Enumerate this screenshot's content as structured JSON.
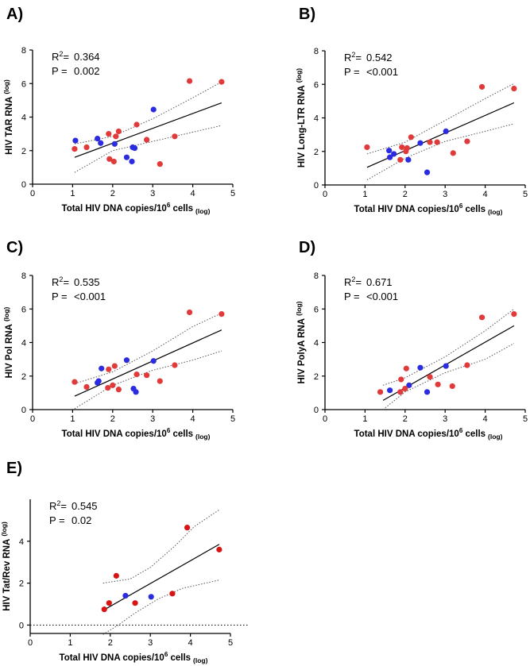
{
  "colors": {
    "blue": "#2b2bdf",
    "red": "#e03a3a",
    "red_dark": "#d81515"
  },
  "chart_data": [
    {
      "type": "scatter",
      "panel": "A)",
      "xlabel": "Total HIV DNA copies/10",
      "xlabel_sup": "6",
      "xlabel_tail": " cells",
      "xlabel_sub": "(log)",
      "ylabel": "HIV TAR RNA",
      "ylabel_sub": "(log)",
      "xlim": [
        0,
        5
      ],
      "ylim": [
        0,
        8
      ],
      "xticks": [
        "0",
        "1",
        "2",
        "3",
        "4",
        "5"
      ],
      "yticks": [
        "0",
        "2",
        "4",
        "6",
        "8"
      ],
      "r2_prefix": "R",
      "r2_sup": "2",
      "r2_eq": "=",
      "r2": "0.364",
      "p_label": "P =",
      "p": "0.002",
      "fit": {
        "x": [
          1.05,
          4.72
        ],
        "y": [
          1.6,
          4.85
        ]
      },
      "ci_upper": [
        [
          1.05,
          2.4
        ],
        [
          2.0,
          2.85
        ],
        [
          3.0,
          3.9
        ],
        [
          4.0,
          5.15
        ],
        [
          4.72,
          6.1
        ]
      ],
      "ci_lower": [
        [
          1.05,
          0.7
        ],
        [
          2.0,
          2.0
        ],
        [
          3.0,
          2.55
        ],
        [
          4.0,
          3.1
        ],
        [
          4.72,
          3.5
        ]
      ],
      "series": [
        {
          "name": "blue",
          "color": "blue",
          "points": [
            [
              1.07,
              2.6
            ],
            [
              1.62,
              2.72
            ],
            [
              1.7,
              2.45
            ],
            [
              2.05,
              2.4
            ],
            [
              2.35,
              1.6
            ],
            [
              2.48,
              1.35
            ],
            [
              2.5,
              2.2
            ],
            [
              2.55,
              2.15
            ],
            [
              3.02,
              4.45
            ]
          ]
        },
        {
          "name": "red",
          "color": "red",
          "points": [
            [
              1.05,
              2.1
            ],
            [
              1.35,
              2.2
            ],
            [
              1.9,
              3.0
            ],
            [
              1.92,
              1.5
            ],
            [
              2.03,
              1.35
            ],
            [
              2.08,
              2.85
            ],
            [
              2.15,
              3.15
            ],
            [
              2.6,
              3.55
            ],
            [
              2.85,
              2.65
            ],
            [
              3.18,
              1.2
            ],
            [
              3.55,
              2.85
            ],
            [
              3.92,
              6.15
            ],
            [
              4.72,
              6.1
            ]
          ]
        }
      ]
    },
    {
      "type": "scatter",
      "panel": "B)",
      "xlabel": "Total HIV DNA copies/10",
      "xlabel_sup": "6",
      "xlabel_tail": " cells",
      "xlabel_sub": "(log)",
      "ylabel": "HIV Long-LTR RNA",
      "ylabel_sub": "(log)",
      "xlim": [
        0,
        5
      ],
      "ylim": [
        0,
        8
      ],
      "xticks": [
        "0",
        "1",
        "2",
        "3",
        "4",
        "5"
      ],
      "yticks": [
        "0",
        "2",
        "4",
        "6",
        "8"
      ],
      "r2_prefix": "R",
      "r2_sup": "2",
      "r2_eq": "=",
      "r2": "0.542",
      "p_label": "P =",
      "p": "<0.001",
      "fit": {
        "x": [
          1.05,
          4.72
        ],
        "y": [
          1.05,
          4.9
        ]
      },
      "ci_upper": [
        [
          1.05,
          1.85
        ],
        [
          2.0,
          2.55
        ],
        [
          3.0,
          3.85
        ],
        [
          4.0,
          5.15
        ],
        [
          4.72,
          6.05
        ]
      ],
      "ci_lower": [
        [
          1.05,
          0.3
        ],
        [
          2.0,
          1.6
        ],
        [
          3.0,
          2.6
        ],
        [
          4.0,
          3.2
        ],
        [
          4.72,
          3.65
        ]
      ],
      "series": [
        {
          "name": "blue",
          "color": "blue",
          "points": [
            [
              1.6,
              2.05
            ],
            [
              1.62,
              1.65
            ],
            [
              1.72,
              1.85
            ],
            [
              2.08,
              1.5
            ],
            [
              2.38,
              2.5
            ],
            [
              2.55,
              0.75
            ],
            [
              3.02,
              3.2
            ]
          ]
        },
        {
          "name": "red",
          "color": "red",
          "points": [
            [
              1.05,
              2.25
            ],
            [
              1.88,
              1.5
            ],
            [
              1.92,
              2.25
            ],
            [
              2.02,
              2.0
            ],
            [
              2.05,
              2.2
            ],
            [
              2.15,
              2.85
            ],
            [
              2.62,
              2.55
            ],
            [
              2.8,
              2.55
            ],
            [
              3.2,
              1.9
            ],
            [
              3.55,
              2.6
            ],
            [
              3.92,
              5.85
            ],
            [
              4.72,
              5.75
            ]
          ]
        }
      ]
    },
    {
      "type": "scatter",
      "panel": "C)",
      "xlabel": "Total HIV DNA copies/10",
      "xlabel_sup": "6",
      "xlabel_tail": " cells",
      "xlabel_sub": "(log)",
      "ylabel": "HIV Pol RNA",
      "ylabel_sub": "(log)",
      "xlim": [
        0,
        5
      ],
      "ylim": [
        0,
        8
      ],
      "xticks": [
        "0",
        "1",
        "2",
        "3",
        "4",
        "5"
      ],
      "yticks": [
        "0",
        "2",
        "4",
        "6",
        "8"
      ],
      "r2_prefix": "R",
      "r2_sup": "2",
      "r2_eq": "=",
      "r2": "0.535",
      "p_label": "P =",
      "p": "<0.001",
      "fit": {
        "x": [
          1.05,
          4.72
        ],
        "y": [
          0.8,
          4.75
        ]
      },
      "ci_upper": [
        [
          1.05,
          1.55
        ],
        [
          2.0,
          2.25
        ],
        [
          3.0,
          3.5
        ],
        [
          4.0,
          4.95
        ],
        [
          4.72,
          5.75
        ]
      ],
      "ci_lower": [
        [
          1.05,
          0.05
        ],
        [
          2.0,
          1.45
        ],
        [
          3.0,
          2.35
        ],
        [
          4.0,
          2.95
        ],
        [
          4.72,
          3.5
        ]
      ],
      "series": [
        {
          "name": "blue",
          "color": "blue",
          "points": [
            [
              1.65,
              1.7
            ],
            [
              1.62,
              1.6
            ],
            [
              1.72,
              2.45
            ],
            [
              2.35,
              2.95
            ],
            [
              2.52,
              1.25
            ],
            [
              2.58,
              1.05
            ],
            [
              3.02,
              2.9
            ]
          ]
        },
        {
          "name": "red",
          "color": "red",
          "points": [
            [
              1.05,
              1.65
            ],
            [
              1.35,
              1.35
            ],
            [
              1.88,
              1.3
            ],
            [
              1.9,
              2.4
            ],
            [
              2.0,
              1.45
            ],
            [
              2.05,
              2.6
            ],
            [
              2.15,
              1.2
            ],
            [
              2.6,
              2.1
            ],
            [
              2.85,
              2.05
            ],
            [
              3.18,
              1.7
            ],
            [
              3.55,
              2.65
            ],
            [
              3.92,
              5.8
            ],
            [
              4.72,
              5.7
            ]
          ]
        }
      ]
    },
    {
      "type": "scatter",
      "panel": "D)",
      "xlabel": "Total HIV DNA copies/10",
      "xlabel_sup": "6",
      "xlabel_tail": " cells",
      "xlabel_sub": "(log)",
      "ylabel": "HIV PolyA RNA",
      "ylabel_sub": "(log)",
      "xlim": [
        0,
        5
      ],
      "ylim": [
        0,
        8
      ],
      "xticks": [
        "0",
        "1",
        "2",
        "3",
        "4",
        "5"
      ],
      "yticks": [
        "0",
        "2",
        "4",
        "6",
        "8"
      ],
      "r2_prefix": "R",
      "r2_sup": "2",
      "r2_eq": "=",
      "r2": "0.671",
      "p_label": "P =",
      "p": "<0.001",
      "fit": {
        "x": [
          1.45,
          4.72
        ],
        "y": [
          0.55,
          5.0
        ]
      },
      "ci_upper": [
        [
          1.45,
          1.45
        ],
        [
          2.0,
          1.9
        ],
        [
          3.0,
          3.15
        ],
        [
          4.0,
          4.7
        ],
        [
          4.72,
          6.0
        ]
      ],
      "ci_lower": [
        [
          1.45,
          0.0
        ],
        [
          2.0,
          1.05
        ],
        [
          3.0,
          2.2
        ],
        [
          4.0,
          3.0
        ],
        [
          4.72,
          3.95
        ]
      ],
      "series": [
        {
          "name": "blue",
          "color": "blue",
          "points": [
            [
              1.62,
              1.15
            ],
            [
              2.1,
              1.45
            ],
            [
              2.38,
              2.5
            ],
            [
              2.55,
              1.05
            ],
            [
              3.02,
              2.6
            ]
          ]
        },
        {
          "name": "red",
          "color": "red",
          "points": [
            [
              1.38,
              1.05
            ],
            [
              1.88,
              1.05
            ],
            [
              1.9,
              1.8
            ],
            [
              2.0,
              1.25
            ],
            [
              2.03,
              2.45
            ],
            [
              2.62,
              1.95
            ],
            [
              2.82,
              1.5
            ],
            [
              3.18,
              1.4
            ],
            [
              3.55,
              2.65
            ],
            [
              3.92,
              5.5
            ],
            [
              4.72,
              5.7
            ]
          ]
        }
      ]
    },
    {
      "type": "scatter",
      "panel": "E)",
      "xlabel": "Total HIV DNA copies/10",
      "xlabel_sup": "6",
      "xlabel_tail": " cells",
      "xlabel_sub": "(log)",
      "ylabel": "HIV Tat/Rev RNA",
      "ylabel_sub": "(log)",
      "xlim": [
        0,
        5
      ],
      "ylim": [
        -0.4,
        6
      ],
      "xticks": [
        "0",
        "1",
        "2",
        "3",
        "4",
        "5"
      ],
      "yticks": [
        "0",
        "2",
        "4"
      ],
      "r2_prefix": "R",
      "r2_sup": "2",
      "r2_eq": "=",
      "r2": "0.545",
      "p_label": "P =",
      "p": "0.02",
      "zero_line": true,
      "fit": {
        "x": [
          1.82,
          4.72
        ],
        "y": [
          0.7,
          3.85
        ]
      },
      "ci_upper": [
        [
          1.82,
          2.0
        ],
        [
          2.5,
          2.2
        ],
        [
          3.0,
          2.75
        ],
        [
          3.6,
          3.75
        ],
        [
          4.1,
          4.7
        ],
        [
          4.72,
          5.5
        ]
      ],
      "ci_lower": [
        [
          1.82,
          -0.45
        ],
        [
          2.2,
          0.0
        ],
        [
          2.6,
          0.55
        ],
        [
          3.2,
          1.25
        ],
        [
          3.8,
          1.75
        ],
        [
          4.72,
          2.15
        ]
      ],
      "series": [
        {
          "name": "blue",
          "color": "blue",
          "points": [
            [
              2.38,
              1.4
            ],
            [
              3.02,
              1.35
            ]
          ]
        },
        {
          "name": "red",
          "color": "red_dark",
          "points": [
            [
              1.85,
              0.75
            ],
            [
              1.97,
              1.05
            ],
            [
              2.15,
              2.35
            ],
            [
              2.62,
              1.05
            ],
            [
              3.55,
              1.5
            ],
            [
              3.92,
              4.65
            ],
            [
              4.72,
              3.6
            ]
          ]
        }
      ]
    }
  ]
}
